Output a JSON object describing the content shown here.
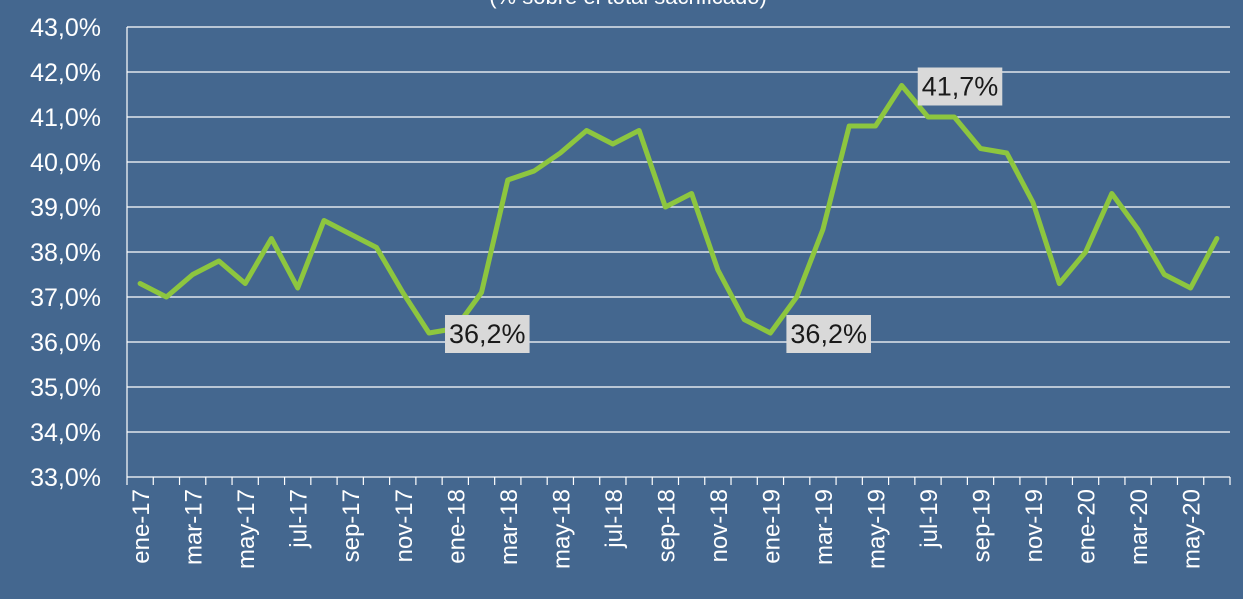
{
  "chart_data": {
    "type": "line",
    "subtitle": "(% sobre el total sacrificado)",
    "categories": [
      "ene-17",
      null,
      "mar-17",
      null,
      "may-17",
      null,
      "jul-17",
      null,
      "sep-17",
      null,
      "nov-17",
      null,
      "ene-18",
      null,
      "mar-18",
      null,
      "may-18",
      null,
      "jul-18",
      null,
      "sep-18",
      null,
      "nov-18",
      null,
      "ene-19",
      null,
      "mar-19",
      null,
      "may-19",
      null,
      "jul-19",
      null,
      "sep-19",
      null,
      "nov-19",
      null,
      "ene-20",
      null,
      "mar-20",
      null,
      "may-20",
      null
    ],
    "series": [
      {
        "name": null,
        "color": "#8dc63f",
        "values": [
          37.3,
          37.0,
          37.5,
          37.8,
          37.3,
          38.3,
          37.2,
          38.7,
          38.4,
          38.1,
          37.1,
          36.2,
          36.3,
          37.1,
          39.6,
          39.8,
          40.2,
          40.7,
          40.4,
          40.7,
          39.0,
          39.3,
          37.6,
          36.5,
          36.2,
          37.0,
          38.5,
          40.8,
          40.8,
          41.7,
          41.0,
          41.0,
          40.3,
          40.2,
          39.1,
          37.3,
          38.0,
          39.3,
          38.5,
          37.5,
          37.2,
          38.3
        ],
        "value_labels": [
          null,
          null,
          null,
          null,
          null,
          null,
          null,
          null,
          null,
          null,
          null,
          "36,2%",
          null,
          null,
          null,
          null,
          null,
          null,
          null,
          null,
          null,
          null,
          null,
          null,
          "36,2%",
          null,
          null,
          null,
          null,
          "41,7%",
          null,
          null,
          null,
          null,
          null,
          null,
          null,
          null,
          null,
          null,
          null,
          null
        ]
      }
    ],
    "ylim": [
      33,
      43
    ],
    "yticks": [
      {
        "value": 33,
        "label": "33,0%"
      },
      {
        "value": 34,
        "label": "34,0%"
      },
      {
        "value": 35,
        "label": "35,0%"
      },
      {
        "value": 36,
        "label": "36,0%"
      },
      {
        "value": 37,
        "label": "37,0%"
      },
      {
        "value": 38,
        "label": "38,0%"
      },
      {
        "value": 39,
        "label": "39,0%"
      },
      {
        "value": 40,
        "label": "40,0%"
      },
      {
        "value": 41,
        "label": "41,0%"
      },
      {
        "value": 42,
        "label": "42,0%"
      },
      {
        "value": 43,
        "label": "43,0%"
      }
    ],
    "grid": true
  }
}
